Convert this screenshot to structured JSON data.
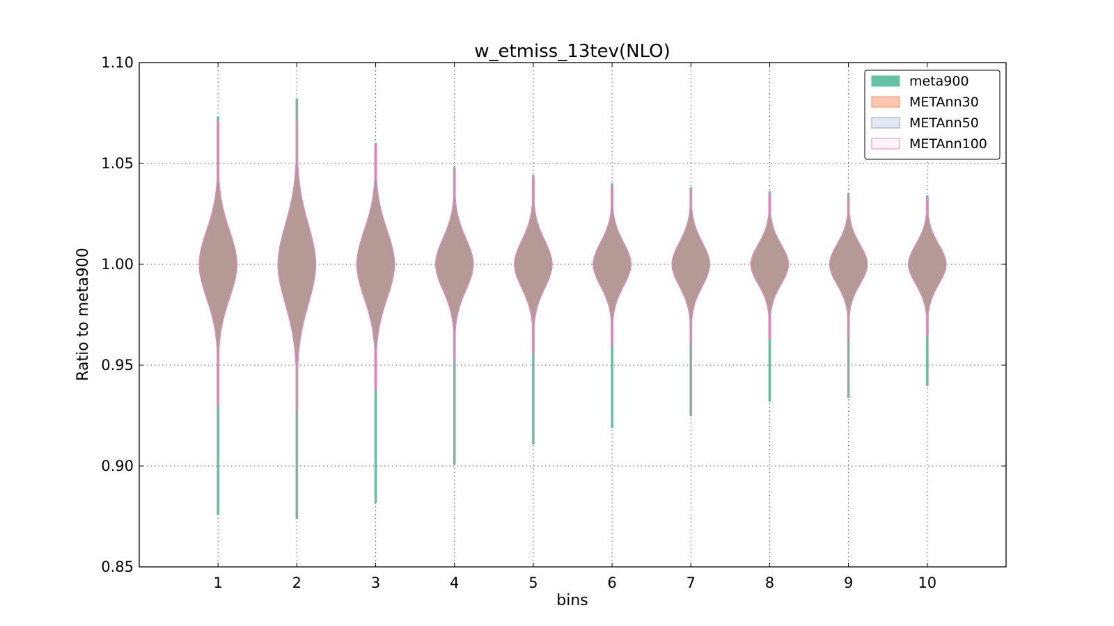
{
  "chart_data": {
    "type": "violin",
    "title": "w_etmiss_13tev(NLO)",
    "xlabel": "bins",
    "ylabel": "Ratio to meta900",
    "xlim": [
      0,
      11
    ],
    "ylim": [
      0.85,
      1.1
    ],
    "yticks": [
      0.85,
      0.9,
      0.95,
      1.0,
      1.05,
      1.1
    ],
    "ytick_labels": [
      "0.85",
      "0.90",
      "0.95",
      "1.00",
      "1.05",
      "1.10"
    ],
    "categories": [
      "1",
      "2",
      "3",
      "4",
      "5",
      "6",
      "7",
      "8",
      "9",
      "10"
    ],
    "grid": true,
    "legend_position": "top-right",
    "series": [
      {
        "name": "meta900",
        "color": "#66c2a5",
        "fill_opacity": 1.0,
        "min": [
          0.876,
          0.874,
          0.882,
          0.901,
          0.911,
          0.919,
          0.925,
          0.932,
          0.934,
          0.94
        ],
        "max": [
          1.073,
          1.082,
          1.06,
          1.048,
          1.044,
          1.04,
          1.038,
          1.036,
          1.035,
          1.034
        ],
        "median": [
          1.0,
          1.0,
          1.0,
          1.0,
          1.0,
          1.0,
          1.0,
          1.0,
          1.0,
          1.0
        ],
        "max_halfwidth": [
          0.24,
          0.24,
          0.24,
          0.24,
          0.24,
          0.24,
          0.24,
          0.24,
          0.24,
          0.24
        ]
      },
      {
        "name": "METAnn30",
        "color": "#fc8d62",
        "fill_opacity": 0.5,
        "min": [
          0.93,
          0.928,
          0.938,
          0.952,
          0.956,
          0.96,
          0.961,
          0.963,
          0.964,
          0.965
        ],
        "max": [
          1.071,
          1.071,
          1.059,
          1.047,
          1.043,
          1.039,
          1.037,
          1.035,
          1.034,
          1.033
        ],
        "median": [
          1.0,
          1.0,
          1.0,
          1.0,
          1.0,
          1.0,
          1.0,
          1.0,
          1.0,
          1.0
        ],
        "max_halfwidth": [
          0.24,
          0.24,
          0.24,
          0.24,
          0.24,
          0.24,
          0.24,
          0.24,
          0.24,
          0.24
        ]
      },
      {
        "name": "METAnn50",
        "color": "#8da0cb",
        "fill_opacity": 0.25,
        "min": [
          0.93,
          0.928,
          0.938,
          0.952,
          0.956,
          0.96,
          0.961,
          0.963,
          0.964,
          0.965
        ],
        "max": [
          1.071,
          1.071,
          1.059,
          1.047,
          1.043,
          1.039,
          1.037,
          1.035,
          1.034,
          1.033
        ],
        "median": [
          1.0,
          1.0,
          1.0,
          1.0,
          1.0,
          1.0,
          1.0,
          1.0,
          1.0,
          1.0
        ],
        "max_halfwidth": [
          0.24,
          0.24,
          0.24,
          0.24,
          0.24,
          0.24,
          0.24,
          0.24,
          0.24,
          0.24
        ]
      },
      {
        "name": "METAnn100",
        "color": "#e78ac3",
        "fill_opacity": 0.1,
        "min": [
          0.93,
          0.928,
          0.938,
          0.952,
          0.956,
          0.96,
          0.961,
          0.963,
          0.964,
          0.965
        ],
        "max": [
          1.071,
          1.071,
          1.059,
          1.047,
          1.043,
          1.039,
          1.037,
          1.035,
          1.034,
          1.033
        ],
        "median": [
          1.0,
          1.0,
          1.0,
          1.0,
          1.0,
          1.0,
          1.0,
          1.0,
          1.0,
          1.0
        ],
        "max_halfwidth": [
          0.24,
          0.24,
          0.24,
          0.24,
          0.24,
          0.24,
          0.24,
          0.24,
          0.24,
          0.24
        ]
      }
    ],
    "spread_sd": [
      0.017,
      0.02,
      0.017,
      0.013,
      0.012,
      0.011,
      0.011,
      0.01,
      0.01,
      0.01
    ],
    "fill_overlap_color": "#a89e98"
  }
}
